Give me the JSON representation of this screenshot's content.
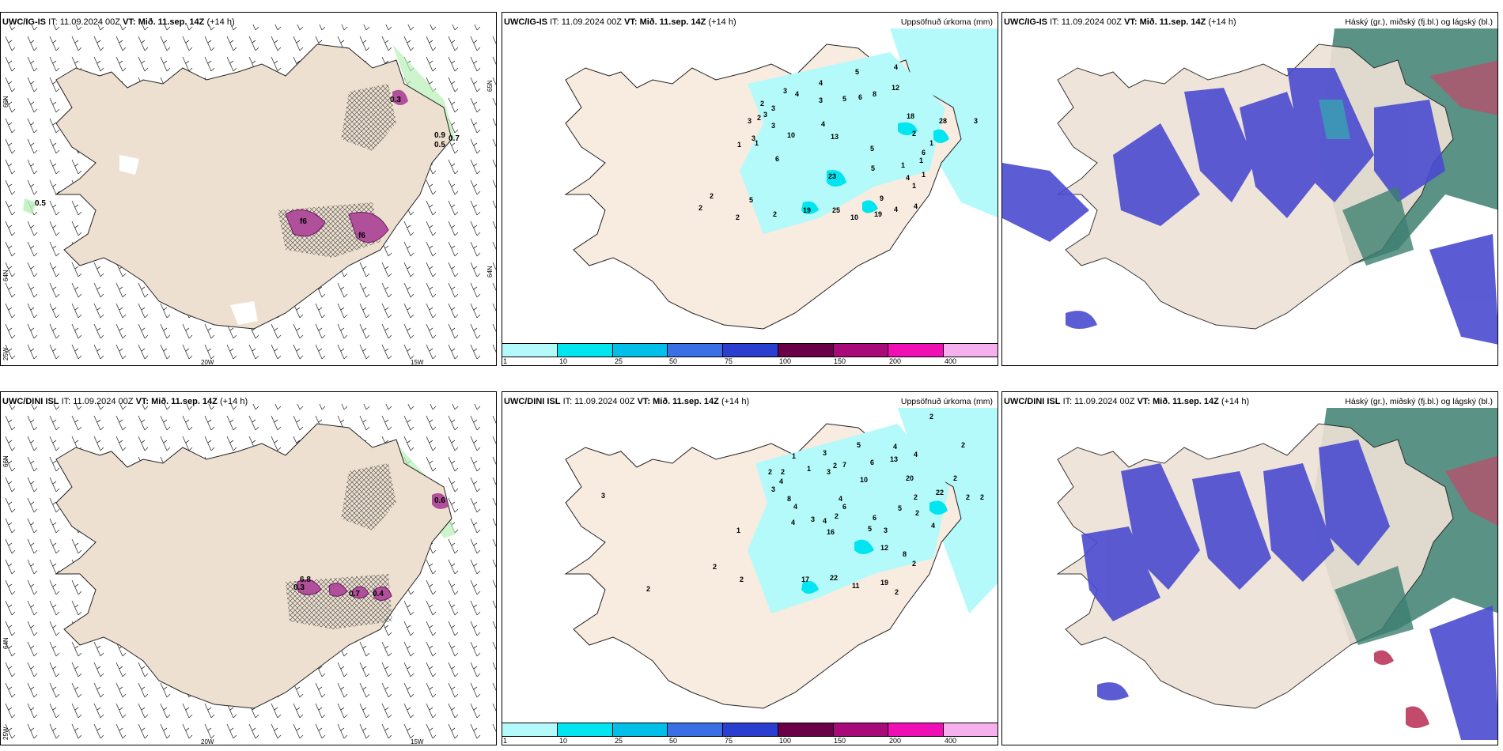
{
  "rows": [
    {
      "model": "UWC/IG-IS",
      "it_label": "IT:",
      "it_value": "11.09.2024 00Z",
      "vt_label": "VT:",
      "vt_value": "Mið. 11.sep. 14Z",
      "lead": "(+14 h)",
      "precip_title": "Uppsöfnuð úrkoma (mm)",
      "cloud_title": "Háský (gr.), miðský (fj.bl.) og lágský (bl.)",
      "precip_numbers": [
        "5",
        "4",
        "12",
        "3",
        "4",
        "4",
        "6",
        "8",
        "2",
        "3",
        "3",
        "5",
        "3",
        "18",
        "28",
        "3",
        "3",
        "2",
        "3",
        "4",
        "1",
        "6",
        "3",
        "10",
        "13",
        "2",
        "1",
        "1",
        "1",
        "1",
        "5",
        "6",
        "5",
        "4",
        "4",
        "1",
        "23",
        "1",
        "2",
        "2",
        "5",
        "9",
        "2",
        "4",
        "19",
        "25",
        "10",
        "19",
        "2"
      ],
      "left_labels": [
        "0.5",
        "0.3",
        "0.9",
        "0.7",
        "0.5",
        "f6",
        "f6"
      ]
    },
    {
      "model": "UWC/DINI ISL",
      "it_label": "IT:",
      "it_value": "11.09.2024 00Z",
      "vt_label": "VT:",
      "vt_value": "Mið. 11.sep. 14Z",
      "lead": "(+14 h)",
      "precip_title": "Uppsöfnuð úrkoma (mm)",
      "cloud_title": "Háský (gr.), miðský (fj.bl.) og lágský (bl.)",
      "precip_numbers": [
        "2",
        "5",
        "4",
        "2",
        "1",
        "3",
        "7",
        "6",
        "4",
        "13",
        "2",
        "3",
        "2",
        "10",
        "20",
        "2",
        "2",
        "2",
        "1",
        "2",
        "2",
        "4",
        "22",
        "3",
        "3",
        "4",
        "8",
        "6",
        "4",
        "2",
        "3",
        "4",
        "4",
        "16",
        "1",
        "5",
        "6",
        "5",
        "3",
        "4",
        "2",
        "12",
        "8",
        "2",
        "17",
        "22",
        "11",
        "19",
        "2",
        "2",
        "2",
        "2"
      ],
      "left_labels": [
        "0.3",
        "0.7",
        "0.4",
        "6.8",
        "0.6"
      ]
    }
  ],
  "left_axis": {
    "lon_20": "20W",
    "lon_15": "15W",
    "lat_66": "66N",
    "lat_64": "64N",
    "lon_25": "25W",
    "lat_65r": "65N",
    "lat_64r": "64N"
  },
  "colorbar": {
    "colors": [
      "#b4fafa",
      "#00e5f0",
      "#00c0ea",
      "#3a6fe6",
      "#2a3fd0",
      "#6a0047",
      "#a80a7a",
      "#f00fb4",
      "#f7b0ee"
    ],
    "labels": [
      "1",
      "10",
      "25",
      "50",
      "75",
      "100",
      "150",
      "200",
      "400"
    ]
  }
}
